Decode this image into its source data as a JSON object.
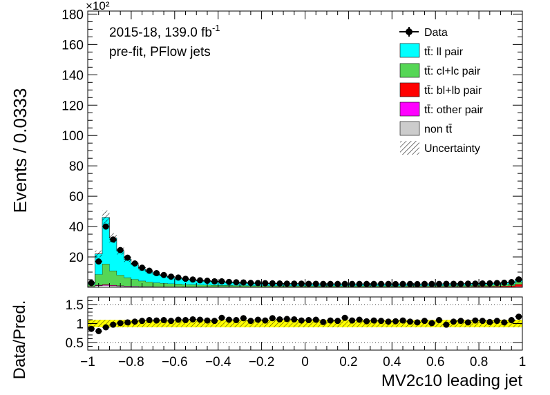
{
  "chart_data": [
    {
      "type": "histogram",
      "panel": "main",
      "ylabel": "Events / 0.0333",
      "y_multiplier": "×10²",
      "ylim": [
        0,
        182
      ],
      "xlim": [
        -1,
        1
      ],
      "y_ticks": [
        20,
        40,
        60,
        80,
        100,
        120,
        140,
        160,
        180
      ],
      "annotations": [
        "2015-18, 139.0 fb",
        "pre-fit, PFlow jets"
      ],
      "annotation_superscript": "-1",
      "bins": [
        -1.0,
        -0.9667,
        -0.9333,
        -0.9,
        -0.8667,
        -0.8333,
        -0.8,
        -0.7667,
        -0.7333,
        -0.7,
        -0.6667,
        -0.6333,
        -0.6,
        -0.5667,
        -0.5333,
        -0.5,
        -0.4667,
        -0.4333,
        -0.4,
        -0.3667,
        -0.3333,
        -0.3,
        -0.2667,
        -0.2333,
        -0.2,
        -0.1667,
        -0.1333,
        -0.1,
        -0.0667,
        -0.0333,
        0.0,
        0.0333,
        0.0667,
        0.1,
        0.1333,
        0.1667,
        0.2,
        0.2333,
        0.2667,
        0.3,
        0.3333,
        0.3667,
        0.4,
        0.4333,
        0.4667,
        0.5,
        0.5333,
        0.5667,
        0.6,
        0.6333,
        0.6667,
        0.7,
        0.7333,
        0.7667,
        0.8,
        0.8333,
        0.8667,
        0.9,
        0.9333,
        0.9667,
        1.0
      ],
      "series": [
        {
          "name": "non tt̄",
          "color": "#cccccc",
          "values": [
            0.5,
            1.0,
            1.2,
            0.9,
            0.7,
            0.6,
            0.5,
            0.4,
            0.4,
            0.3,
            0.3,
            0.3,
            0.3,
            0.2,
            0.2,
            0.2,
            0.2,
            0.2,
            0.2,
            0.2,
            0.2,
            0.2,
            0.2,
            0.2,
            0.2,
            0.2,
            0.2,
            0.2,
            0.2,
            0.2,
            0.2,
            0.2,
            0.2,
            0.2,
            0.2,
            0.2,
            0.2,
            0.2,
            0.2,
            0.2,
            0.2,
            0.2,
            0.2,
            0.2,
            0.2,
            0.2,
            0.2,
            0.2,
            0.2,
            0.2,
            0.2,
            0.2,
            0.2,
            0.2,
            0.2,
            0.2,
            0.2,
            0.2,
            0.2,
            0.3
          ]
        },
        {
          "name": "tt̄: other pair",
          "color": "#ff00ff",
          "values": [
            0.1,
            0.3,
            0.4,
            0.3,
            0.2,
            0.2,
            0.2,
            0.1,
            0.1,
            0.1,
            0.1,
            0.1,
            0.1,
            0.1,
            0.1,
            0.1,
            0.1,
            0.1,
            0.1,
            0.1,
            0.1,
            0.1,
            0.1,
            0.1,
            0.1,
            0.1,
            0.1,
            0.1,
            0.1,
            0.1,
            0.1,
            0.1,
            0.1,
            0.1,
            0.1,
            0.1,
            0.1,
            0.1,
            0.1,
            0.1,
            0.1,
            0.1,
            0.1,
            0.1,
            0.1,
            0.1,
            0.1,
            0.1,
            0.1,
            0.1,
            0.1,
            0.1,
            0.1,
            0.1,
            0.1,
            0.1,
            0.1,
            0.1,
            0.1,
            0.2
          ]
        },
        {
          "name": "tt̄: bl+lb pair",
          "color": "#ff0000",
          "values": [
            0.1,
            0.2,
            0.3,
            0.2,
            0.2,
            0.1,
            0.1,
            0.1,
            0.1,
            0.1,
            0.1,
            0.1,
            0.1,
            0.1,
            0.1,
            0.1,
            0.1,
            0.1,
            0.1,
            0.1,
            0.1,
            0.1,
            0.1,
            0.1,
            0.1,
            0.1,
            0.1,
            0.1,
            0.1,
            0.1,
            0.1,
            0.1,
            0.1,
            0.1,
            0.1,
            0.1,
            0.1,
            0.1,
            0.1,
            0.1,
            0.1,
            0.1,
            0.1,
            0.1,
            0.2,
            0.2,
            0.2,
            0.2,
            0.2,
            0.2,
            0.2,
            0.2,
            0.2,
            0.3,
            0.3,
            0.3,
            0.4,
            0.5,
            0.7,
            1.5
          ]
        },
        {
          "name": "tt̄: cl+lc pair",
          "color": "#55d655",
          "values": [
            1.2,
            7.0,
            13.5,
            9.5,
            7.0,
            5.5,
            4.5,
            3.6,
            3.0,
            2.5,
            2.2,
            1.9,
            1.7,
            1.5,
            1.4,
            1.2,
            1.1,
            1.0,
            0.9,
            0.9,
            0.8,
            0.8,
            0.7,
            0.7,
            0.7,
            0.6,
            0.6,
            0.6,
            0.6,
            0.6,
            0.6,
            0.6,
            0.6,
            0.6,
            0.6,
            0.6,
            0.6,
            0.6,
            0.6,
            0.6,
            0.6,
            0.6,
            0.6,
            0.6,
            0.6,
            0.6,
            0.6,
            0.6,
            0.6,
            0.7,
            0.7,
            0.7,
            0.7,
            0.8,
            0.8,
            0.9,
            1.0,
            1.1,
            1.2,
            1.5
          ]
        },
        {
          "name": "tt̄: ll pair",
          "color": "#00ffff",
          "values": [
            1.1,
            13.5,
            30.6,
            21.5,
            15.8,
            12.1,
            9.7,
            7.8,
            6.6,
            5.5,
            4.7,
            4.0,
            3.6,
            3.2,
            2.9,
            2.6,
            2.4,
            2.2,
            2.0,
            1.9,
            1.8,
            1.6,
            1.5,
            1.4,
            1.4,
            1.3,
            1.3,
            1.2,
            1.2,
            1.2,
            1.1,
            1.1,
            1.1,
            1.1,
            1.0,
            1.0,
            1.0,
            1.0,
            1.0,
            1.0,
            1.0,
            1.0,
            1.0,
            1.0,
            1.0,
            1.0,
            1.0,
            1.0,
            1.0,
            1.0,
            1.0,
            1.0,
            1.1,
            1.1,
            1.1,
            1.1,
            1.2,
            1.2,
            1.3,
            1.5
          ]
        }
      ],
      "data": {
        "name": "Data",
        "values": [
          2.8,
          17.0,
          40.0,
          31.5,
          24.5,
          19.5,
          15.7,
          12.9,
          10.9,
          9.3,
          8.1,
          7.0,
          6.4,
          5.6,
          5.1,
          4.6,
          4.3,
          3.9,
          3.9,
          3.5,
          3.3,
          3.2,
          2.9,
          2.8,
          2.7,
          2.6,
          2.5,
          2.4,
          2.4,
          2.4,
          2.3,
          2.3,
          2.2,
          2.2,
          2.2,
          2.2,
          2.2,
          2.2,
          2.2,
          2.2,
          2.2,
          2.2,
          2.1,
          2.2,
          2.2,
          2.1,
          2.2,
          2.2,
          2.2,
          2.3,
          2.3,
          2.3,
          2.4,
          2.4,
          2.5,
          2.6,
          2.8,
          3.0,
          3.4,
          5.2
        ]
      },
      "uncertainty": {
        "name": "Uncertainty",
        "relative": 0.1
      },
      "legend": [
        "Data",
        "tt̄: ll pair",
        "tt̄: cl+lc pair",
        "tt̄: bl+lb pair",
        "tt̄: other pair",
        "non tt̄",
        "Uncertainty"
      ],
      "legend_position": "top-right"
    },
    {
      "type": "ratio",
      "panel": "ratio",
      "ylabel": "Data/Pred.",
      "xlabel": "MV2c10 leading jet",
      "ylim": [
        0.3,
        1.7
      ],
      "y_ticks": [
        0.5,
        1,
        1.5
      ],
      "x_ticks": [
        -1,
        -0.8,
        -0.6,
        -0.4,
        -0.2,
        0,
        0.2,
        0.4,
        0.6,
        0.8,
        1
      ],
      "band": {
        "color": "#ffff00",
        "half_width": 0.1
      },
      "values": [
        0.86,
        0.8,
        0.9,
        0.97,
        1.01,
        1.03,
        1.05,
        1.07,
        1.09,
        1.08,
        1.09,
        1.07,
        1.1,
        1.09,
        1.11,
        1.1,
        1.08,
        1.07,
        1.15,
        1.1,
        1.09,
        1.14,
        1.07,
        1.1,
        1.08,
        1.14,
        1.11,
        1.12,
        1.11,
        1.08,
        1.09,
        1.1,
        1.04,
        1.08,
        1.07,
        1.15,
        1.08,
        1.1,
        1.06,
        1.08,
        1.07,
        1.05,
        1.06,
        1.08,
        1.05,
        1.03,
        1.07,
        1.01,
        1.09,
        0.97,
        1.05,
        1.07,
        1.03,
        1.08,
        1.07,
        1.04,
        1.07,
        1.03,
        1.09,
        1.18
      ]
    }
  ]
}
